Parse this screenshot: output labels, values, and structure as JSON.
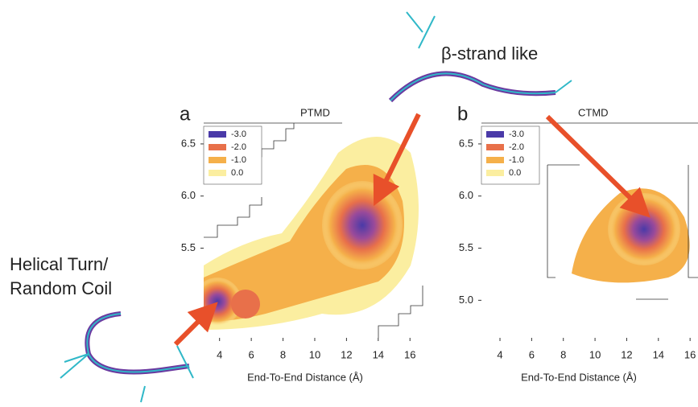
{
  "annotations": [
    "Helical Turn/",
    "Random Coil",
    "β-strand like"
  ],
  "chart_data": [
    {
      "type": "contour",
      "panel": "a",
      "title": "PTMD",
      "x_label": "End-To-End Distance (Å)",
      "xlim": [
        3,
        16.8
      ],
      "xticks": [
        4,
        6,
        8,
        10,
        12,
        14,
        16
      ],
      "ylim": [
        4.64,
        6.7
      ],
      "yticks": [
        {
          "value": 5.5,
          "label": "5.5"
        },
        {
          "value": 6,
          "label": "6.0"
        },
        6.5
      ],
      "legend": [
        {
          "value": -3,
          "label": "-3.0",
          "color": "#4a3aa8"
        },
        {
          "value": -2,
          "label": "-2.0",
          "color": "#e8704a"
        },
        {
          "value": -1,
          "label": "-1.0",
          "color": "#f5b04a"
        },
        {
          "value": 0,
          "label": "0.0",
          "color": "#fbeea0"
        }
      ]
    },
    {
      "type": "contour",
      "panel": "b",
      "title": "CTMD",
      "x_label": "End-To-End Distance (Å)",
      "xlim": [
        2.83,
        16.5
      ],
      "xticks": [
        4,
        6,
        8,
        10,
        12,
        14,
        16
      ],
      "ylim": [
        4.64,
        6.7
      ],
      "yticks": [
        {
          "value": 5,
          "label": "5.0"
        },
        {
          "value": 5.5,
          "label": "5.5"
        },
        {
          "value": 6,
          "label": "6.0"
        },
        6.5
      ],
      "legend": [
        {
          "value": -3,
          "label": "-3.0",
          "color": "#4a3aa8"
        },
        {
          "value": -2,
          "label": "-2.0",
          "color": "#e8704a"
        },
        {
          "value": -1,
          "label": "-1.0",
          "color": "#f5b04a"
        },
        {
          "value": 0,
          "label": "0.0",
          "color": "#fbeea0"
        }
      ]
    }
  ]
}
